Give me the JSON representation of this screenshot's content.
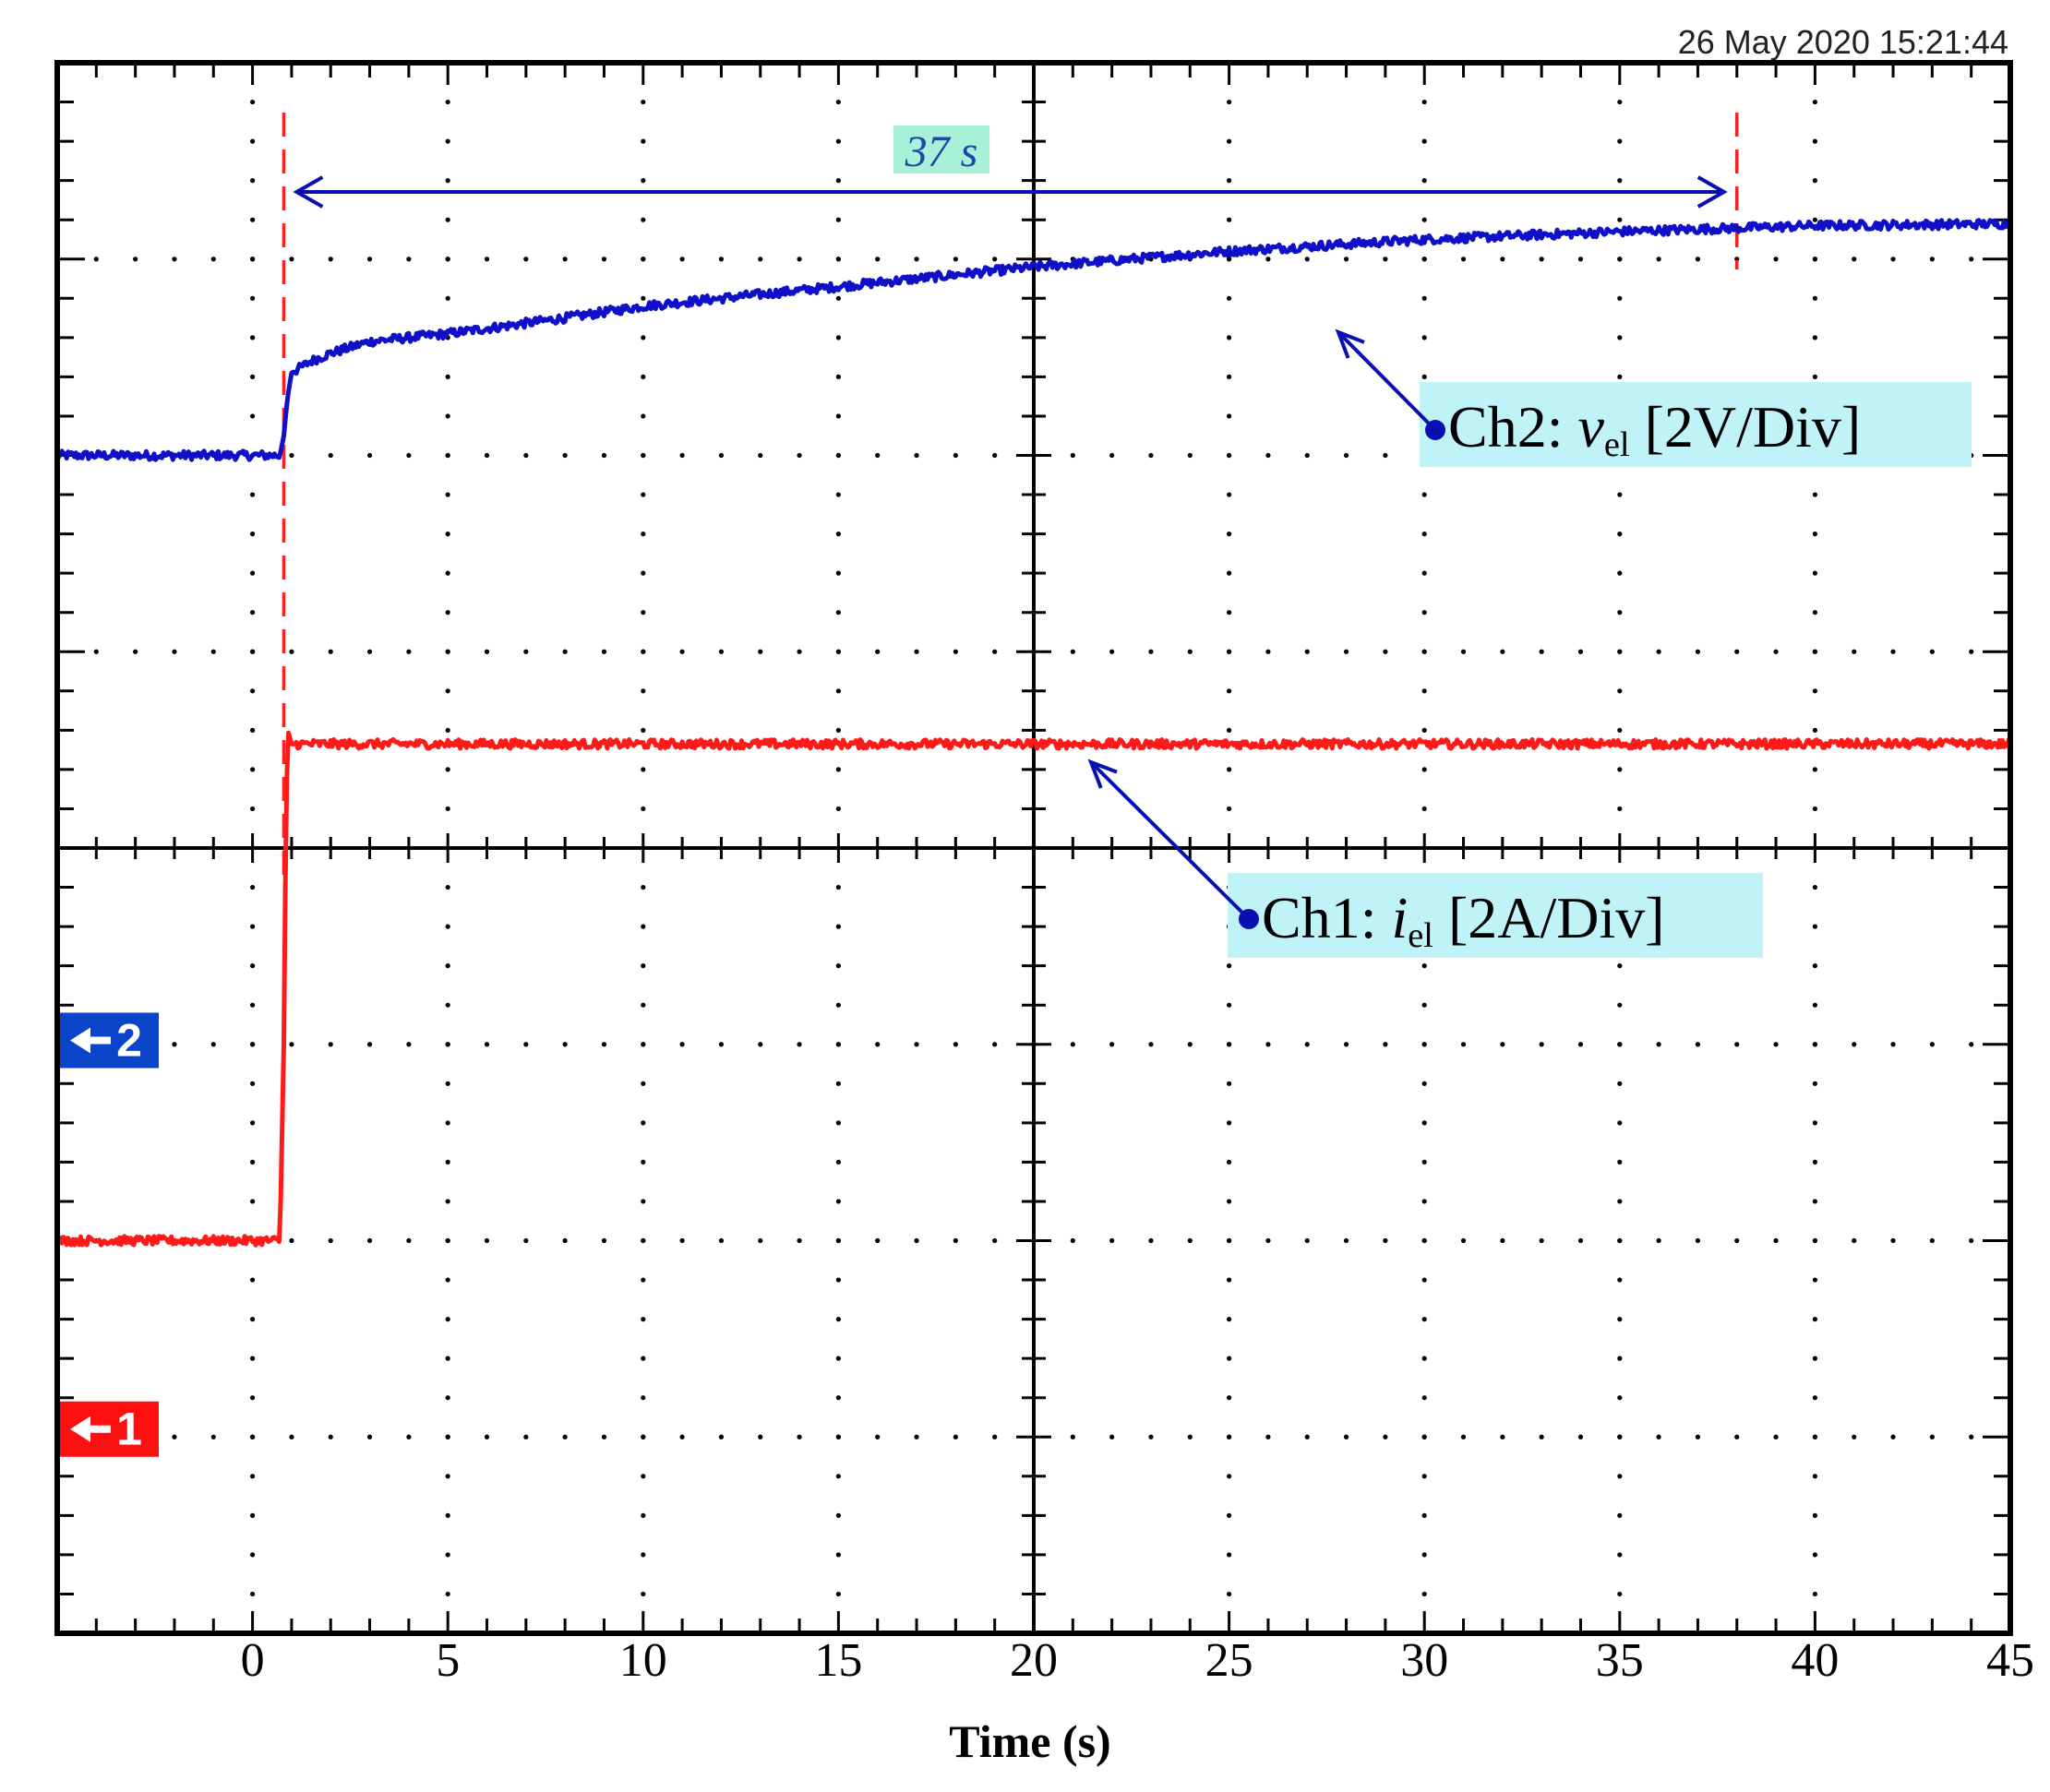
{
  "timestamp": "26 May 2020  15:21:44",
  "colors": {
    "ch1": "#ff1a1a",
    "ch2": "#1010c8",
    "cursor": "#ff2020",
    "label_bg": "#bff3f8",
    "measure_bg": "#a8f0d8",
    "ch1_marker_bg": "#ff1010",
    "ch2_marker_bg": "#0a44c8"
  },
  "measurement": {
    "label": "37 s"
  },
  "annotations": {
    "ch2": {
      "name": "Ch2: ",
      "var": "v",
      "sub": "el",
      "scale": " [2V/Div]"
    },
    "ch1": {
      "name": "Ch1: ",
      "var": "i",
      "sub": "el",
      "scale": " [2A/Div]"
    }
  },
  "markers": {
    "ch2": "2",
    "ch1": "1"
  },
  "chart_data": {
    "type": "line",
    "title": "",
    "xlabel": "Time (s)",
    "ylabel": "",
    "xlim": [
      -5,
      45
    ],
    "ylim": [
      -4,
      4
    ],
    "x_ticks": [
      0,
      5,
      10,
      15,
      20,
      25,
      30,
      35,
      40,
      45
    ],
    "x_tick_labels": [
      "0",
      "5",
      "10",
      "15",
      "20",
      "25",
      "30",
      "35",
      "40",
      "45"
    ],
    "grid": true,
    "cursors_x": [
      0.8,
      38
    ],
    "series": [
      {
        "name": "Ch2: vel [2V/Div]",
        "unit": "V",
        "x": [
          -5,
          0,
          0.7,
          0.8,
          0.9,
          1.0,
          1.5,
          2,
          3,
          5,
          8,
          10,
          15,
          20,
          25,
          30,
          35,
          40,
          45
        ],
        "y": [
          2.0,
          2.0,
          2.0,
          2.1,
          2.3,
          2.42,
          2.48,
          2.52,
          2.58,
          2.62,
          2.7,
          2.76,
          2.86,
          2.96,
          3.04,
          3.1,
          3.14,
          3.17,
          3.18
        ]
      },
      {
        "name": "Ch1: iel [2A/Div]",
        "unit": "A",
        "x": [
          -5,
          0,
          0.7,
          0.8,
          0.85,
          0.9,
          1.0,
          45
        ],
        "y": [
          -2.0,
          -2.0,
          -2.0,
          -1.0,
          0.0,
          0.6,
          0.53,
          0.53
        ]
      }
    ]
  }
}
